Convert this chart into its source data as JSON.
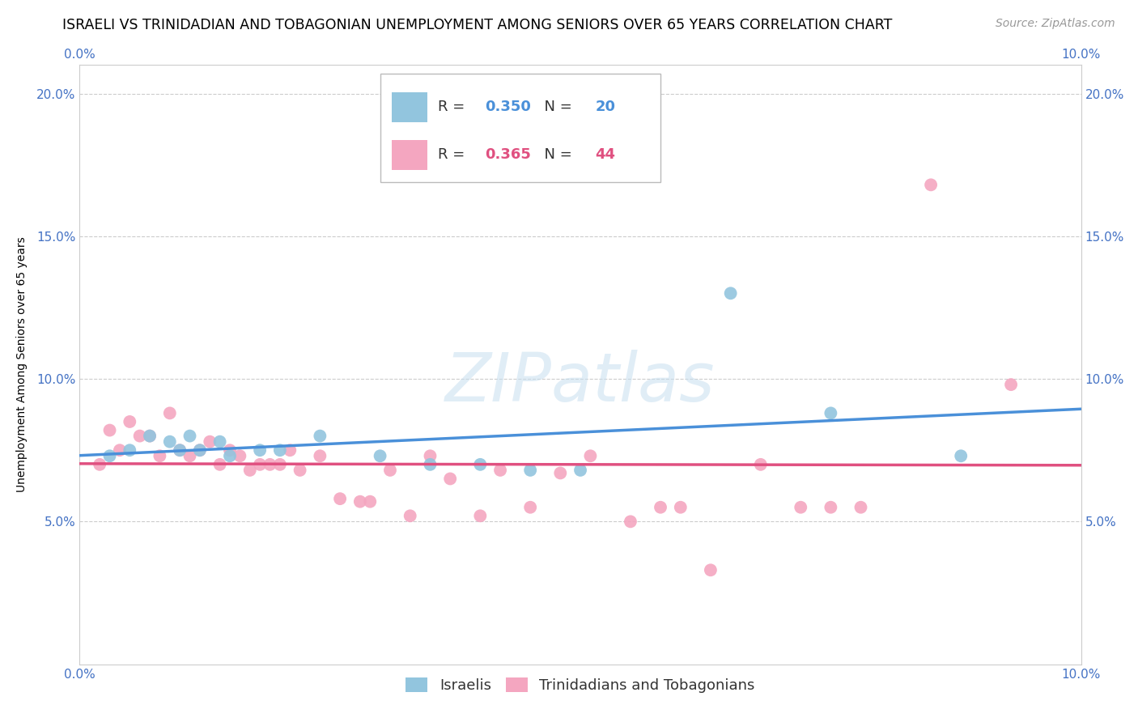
{
  "title": "ISRAELI VS TRINIDADIAN AND TOBAGONIAN UNEMPLOYMENT AMONG SENIORS OVER 65 YEARS CORRELATION CHART",
  "source": "Source: ZipAtlas.com",
  "ylabel": "Unemployment Among Seniors over 65 years",
  "xlim": [
    0.0,
    0.1
  ],
  "ylim": [
    0.0,
    0.21
  ],
  "xtick_positions": [
    0.0,
    0.02,
    0.04,
    0.06,
    0.08,
    0.1
  ],
  "xticklabels": [
    "0.0%",
    "",
    "",
    "",
    "",
    "10.0%"
  ],
  "ytick_positions": [
    0.0,
    0.05,
    0.1,
    0.15,
    0.2
  ],
  "yticklabels": [
    "",
    "5.0%",
    "10.0%",
    "15.0%",
    "20.0%"
  ],
  "watermark_text": "ZIPatlas",
  "israeli_color": "#92c5de",
  "trinidadian_color": "#f4a6c0",
  "israeli_line_color": "#4a90d9",
  "trinidadian_line_color": "#e05080",
  "R_israeli": 0.35,
  "N_israeli": 20,
  "R_trinidadian": 0.365,
  "N_trinidadian": 44,
  "israeli_x": [
    0.003,
    0.005,
    0.007,
    0.009,
    0.01,
    0.011,
    0.012,
    0.014,
    0.015,
    0.018,
    0.02,
    0.024,
    0.03,
    0.035,
    0.04,
    0.045,
    0.05,
    0.065,
    0.075,
    0.088
  ],
  "israeli_y": [
    0.073,
    0.075,
    0.08,
    0.078,
    0.075,
    0.08,
    0.075,
    0.078,
    0.073,
    0.075,
    0.075,
    0.08,
    0.073,
    0.07,
    0.07,
    0.068,
    0.068,
    0.13,
    0.088,
    0.073
  ],
  "trinidadian_x": [
    0.002,
    0.003,
    0.004,
    0.005,
    0.006,
    0.007,
    0.008,
    0.009,
    0.01,
    0.011,
    0.012,
    0.013,
    0.014,
    0.015,
    0.016,
    0.017,
    0.018,
    0.019,
    0.02,
    0.021,
    0.022,
    0.024,
    0.026,
    0.028,
    0.029,
    0.031,
    0.033,
    0.035,
    0.037,
    0.04,
    0.042,
    0.045,
    0.048,
    0.051,
    0.055,
    0.058,
    0.06,
    0.063,
    0.068,
    0.072,
    0.075,
    0.078,
    0.085,
    0.093
  ],
  "trinidadian_y": [
    0.07,
    0.082,
    0.075,
    0.085,
    0.08,
    0.08,
    0.073,
    0.088,
    0.075,
    0.073,
    0.075,
    0.078,
    0.07,
    0.075,
    0.073,
    0.068,
    0.07,
    0.07,
    0.07,
    0.075,
    0.068,
    0.073,
    0.058,
    0.057,
    0.057,
    0.068,
    0.052,
    0.073,
    0.065,
    0.052,
    0.068,
    0.055,
    0.067,
    0.073,
    0.05,
    0.055,
    0.055,
    0.033,
    0.07,
    0.055,
    0.055,
    0.055,
    0.168,
    0.098
  ],
  "background_color": "#ffffff",
  "grid_color": "#cccccc",
  "tick_color": "#4472c4",
  "title_fontsize": 12.5,
  "axis_label_fontsize": 10,
  "tick_fontsize": 11,
  "legend_fontsize": 13,
  "source_fontsize": 10,
  "marker_size": 130
}
